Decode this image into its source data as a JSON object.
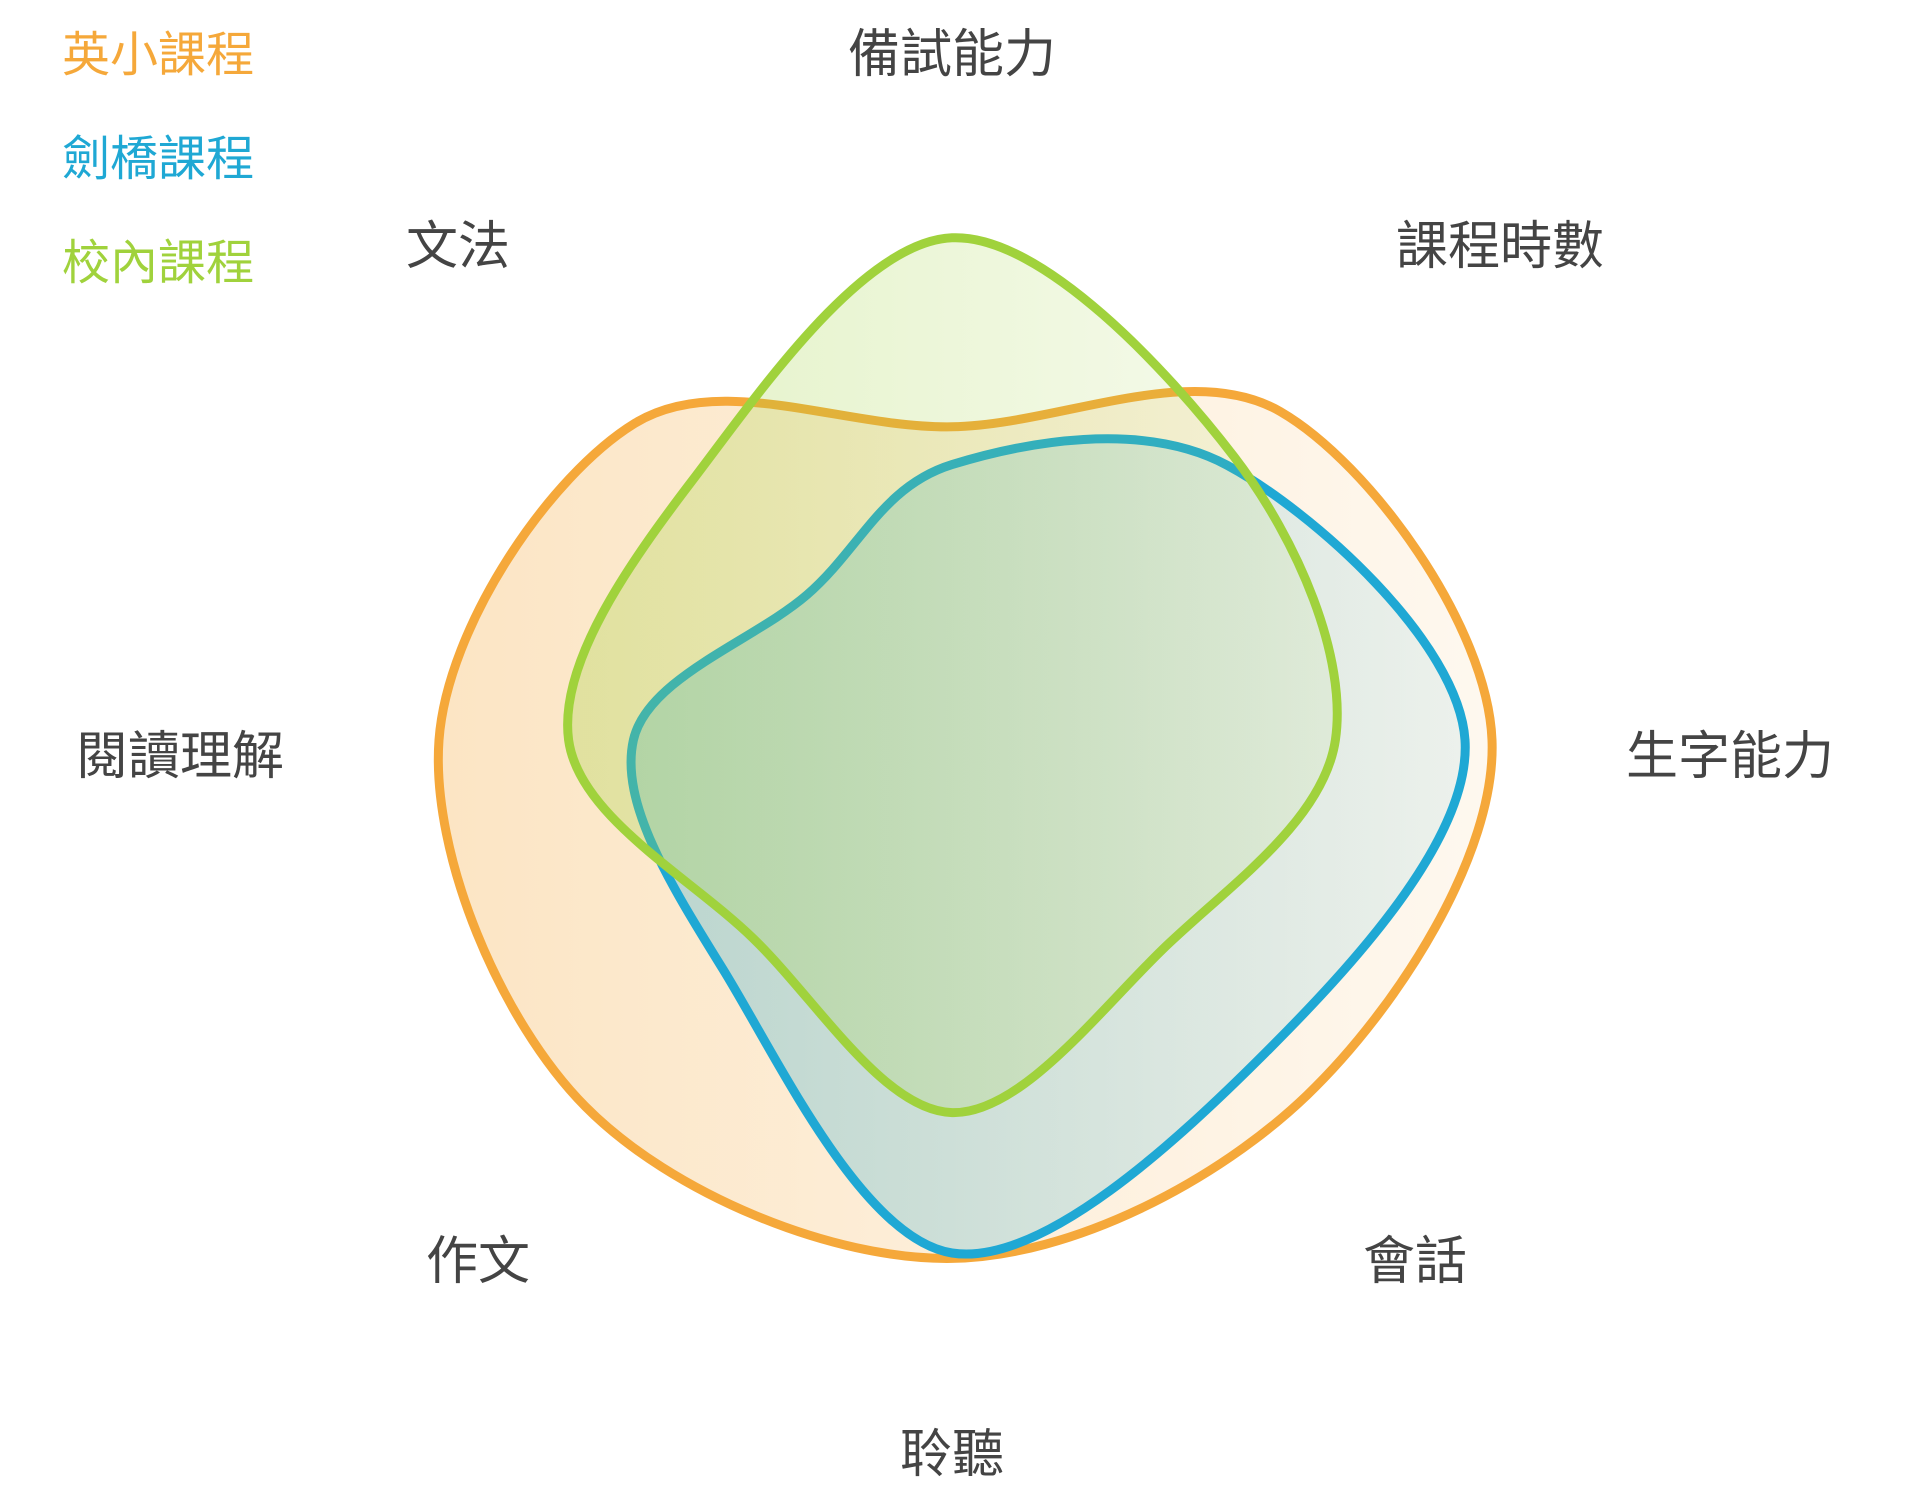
{
  "chart_data": {
    "type": "radar",
    "axes": [
      "備試能力",
      "課程時數",
      "生字能力",
      "會話",
      "聆聽",
      "作文",
      "閱讀理解",
      "文法"
    ],
    "series": [
      {
        "name": "英小課程",
        "color": "#F5A83A",
        "values": [
          0.58,
          0.86,
          1.0,
          0.93,
          0.96,
          0.96,
          0.95,
          0.83
        ]
      },
      {
        "name": "劍橋課程",
        "color": "#1FA8D4",
        "values": [
          0.51,
          0.72,
          0.95,
          0.82,
          0.95,
          0.6,
          0.59,
          0.38
        ]
      },
      {
        "name": "校內課程",
        "color": "#A0D23C",
        "values": [
          0.93,
          0.74,
          0.71,
          0.55,
          0.69,
          0.52,
          0.71,
          0.68
        ]
      }
    ],
    "range": [
      0,
      1
    ],
    "grid": false,
    "legend": "top-left"
  }
}
